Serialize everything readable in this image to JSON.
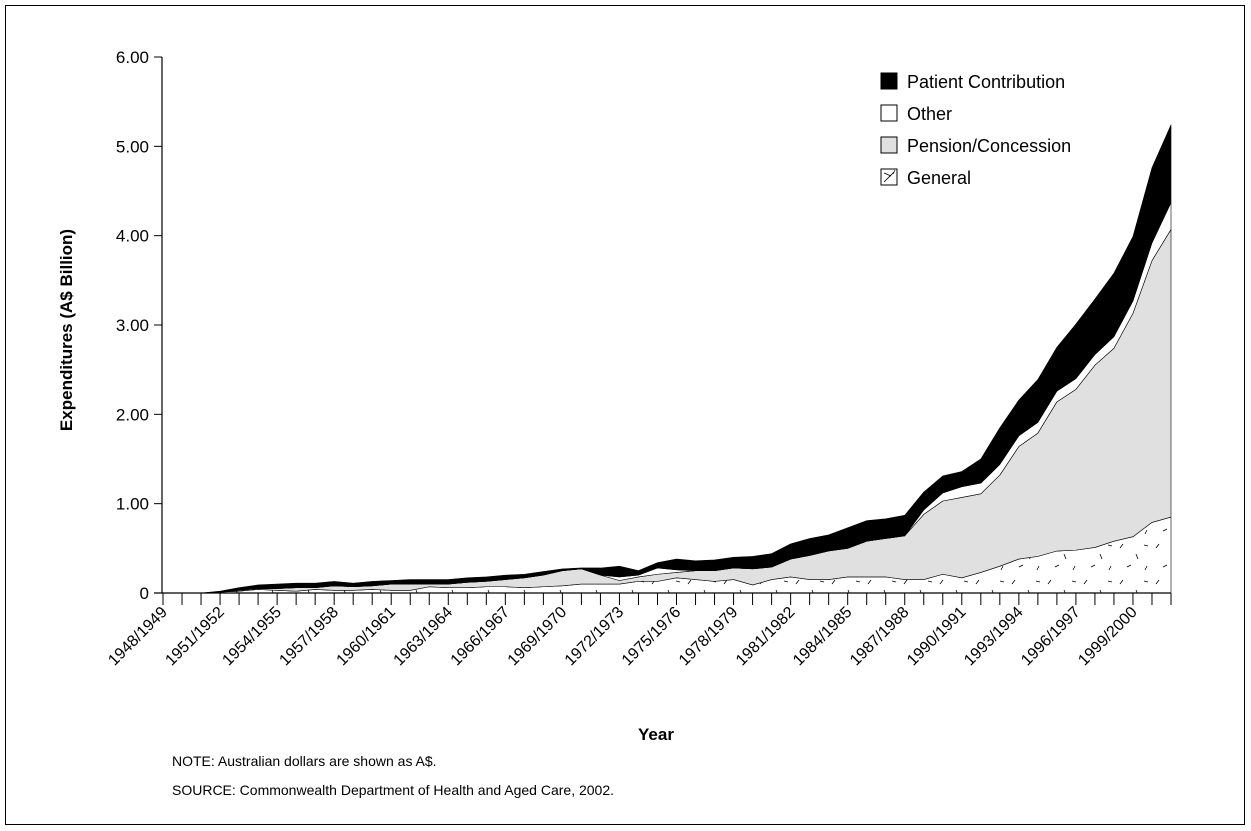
{
  "chart_data": {
    "type": "area",
    "stacked": true,
    "title": "",
    "xlabel": "Year",
    "ylabel": "Expenditures (A$ Billion)",
    "ylim": [
      0,
      6
    ],
    "yticks": [
      "0",
      "1.00",
      "2.00",
      "3.00",
      "4.00",
      "5.00",
      "6.00"
    ],
    "x": [
      "1948/1949",
      "1949/1950",
      "1950/1951",
      "1951/1952",
      "1952/1953",
      "1953/1954",
      "1954/1955",
      "1955/1956",
      "1956/1957",
      "1957/1958",
      "1958/1959",
      "1959/1960",
      "1960/1961",
      "1961/1962",
      "1962/1963",
      "1963/1964",
      "1964/1965",
      "1965/1966",
      "1966/1967",
      "1967/1968",
      "1968/1969",
      "1969/1970",
      "1970/1971",
      "1971/1972",
      "1972/1973",
      "1973/1974",
      "1974/1975",
      "1975/1976",
      "1976/1977",
      "1977/1978",
      "1978/1979",
      "1979/1980",
      "1980/1981",
      "1981/1982",
      "1982/1983",
      "1983/1984",
      "1984/1985",
      "1985/1986",
      "1986/1987",
      "1987/1988",
      "1988/1989",
      "1989/1990",
      "1990/1991",
      "1991/1992",
      "1992/1993",
      "1993/1994",
      "1994/1995",
      "1995/1996",
      "1996/1997",
      "1997/1998",
      "1998/1999",
      "1999/2000",
      "2000/2001",
      "2001/2002"
    ],
    "tick_labels": [
      "1948/1949",
      "1951/1952",
      "1954/1955",
      "1957/1958",
      "1960/1961",
      "1963/1964",
      "1966/1967",
      "1969/1970",
      "1972/1973",
      "1975/1976",
      "1978/1979",
      "1981/1982",
      "1984/1985",
      "1987/1988",
      "1990/1991",
      "1993/1994",
      "1996/1997",
      "1999/2000"
    ],
    "legend_position": "top-right",
    "series": [
      {
        "name": "General",
        "fill": "#ffffff",
        "pattern": "dashes",
        "values": [
          0.0,
          0.0,
          0.0,
          0.01,
          0.02,
          0.04,
          0.03,
          0.02,
          0.04,
          0.03,
          0.03,
          0.04,
          0.03,
          0.03,
          0.07,
          0.06,
          0.06,
          0.07,
          0.07,
          0.06,
          0.07,
          0.08,
          0.1,
          0.1,
          0.1,
          0.13,
          0.13,
          0.17,
          0.15,
          0.13,
          0.15,
          0.09,
          0.15,
          0.18,
          0.15,
          0.15,
          0.18,
          0.18,
          0.18,
          0.15,
          0.15,
          0.21,
          0.17,
          0.23,
          0.3,
          0.38,
          0.41,
          0.47,
          0.48,
          0.51,
          0.58,
          0.63,
          0.79,
          0.85
        ]
      },
      {
        "name": "Pension/Concession",
        "fill": "#e0e0e0",
        "values": [
          0.0,
          0.0,
          0.0,
          0.0,
          0.01,
          0.01,
          0.02,
          0.04,
          0.02,
          0.05,
          0.04,
          0.04,
          0.07,
          0.07,
          0.03,
          0.04,
          0.06,
          0.06,
          0.08,
          0.11,
          0.13,
          0.17,
          0.17,
          0.1,
          0.04,
          0.05,
          0.08,
          0.06,
          0.1,
          0.12,
          0.13,
          0.18,
          0.14,
          0.2,
          0.27,
          0.32,
          0.32,
          0.4,
          0.43,
          0.49,
          0.73,
          0.82,
          0.9,
          0.88,
          1.02,
          1.26,
          1.38,
          1.67,
          1.8,
          2.04,
          2.16,
          2.5,
          2.93,
          3.22
        ]
      },
      {
        "name": "Other",
        "fill": "#ffffff",
        "values": [
          0.0,
          0.0,
          0.0,
          0.0,
          0.0,
          0.0,
          0.0,
          0.0,
          0.0,
          0.0,
          0.0,
          0.0,
          0.0,
          0.0,
          0.0,
          0.0,
          0.0,
          0.0,
          0.0,
          0.0,
          0.0,
          0.0,
          0.0,
          0.0,
          0.04,
          0.02,
          0.07,
          0.03,
          0.0,
          0.0,
          0.0,
          0.0,
          0.0,
          0.0,
          0.0,
          0.0,
          0.0,
          0.0,
          0.0,
          0.0,
          0.05,
          0.09,
          0.12,
          0.12,
          0.12,
          0.12,
          0.12,
          0.12,
          0.12,
          0.12,
          0.13,
          0.14,
          0.2,
          0.3
        ]
      },
      {
        "name": "Patient Contribution",
        "fill": "#000000",
        "values": [
          0.0,
          0.0,
          0.0,
          0.01,
          0.03,
          0.04,
          0.05,
          0.05,
          0.05,
          0.05,
          0.04,
          0.05,
          0.04,
          0.05,
          0.05,
          0.05,
          0.05,
          0.05,
          0.05,
          0.04,
          0.04,
          0.02,
          0.01,
          0.08,
          0.12,
          0.05,
          0.06,
          0.12,
          0.11,
          0.12,
          0.12,
          0.14,
          0.15,
          0.17,
          0.19,
          0.18,
          0.23,
          0.23,
          0.22,
          0.23,
          0.2,
          0.19,
          0.17,
          0.27,
          0.41,
          0.4,
          0.48,
          0.49,
          0.61,
          0.62,
          0.71,
          0.72,
          0.84,
          0.87
        ]
      }
    ]
  },
  "notes": {
    "note": "NOTE: Australian dollars are shown as A$.",
    "source": "SOURCE: Commonwealth Department of Health and Aged Care, 2002."
  },
  "colors": {
    "axis": "#000000",
    "pension": "#e0e0e0",
    "patient": "#000000"
  }
}
